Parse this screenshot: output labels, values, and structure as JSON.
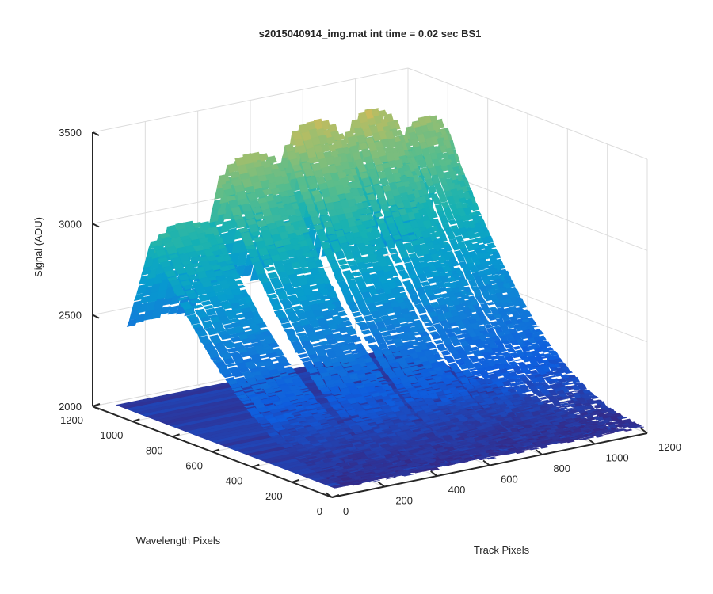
{
  "chart_data": {
    "type": "surface",
    "title": "s2015040914_img.mat int time = 0.02 sec   BS1",
    "xlabel": "Track Pixels",
    "ylabel": "Wavelength Pixels",
    "zlabel": "Signal (ADU)",
    "xlim": [
      0,
      1200
    ],
    "ylim": [
      0,
      1200
    ],
    "zlim": [
      2000,
      3500
    ],
    "x_ticks": [
      "0",
      "200",
      "400",
      "600",
      "800",
      "1000",
      "1200"
    ],
    "y_ticks": [
      "0",
      "200",
      "400",
      "600",
      "800",
      "1000",
      "1200"
    ],
    "z_ticks": [
      "2000",
      "2500",
      "3000",
      "3500"
    ],
    "grid": true,
    "colormap": "parula",
    "colors": {
      "low": "#352a87",
      "mid": "#0fa6d8",
      "high": "#f9fb0e"
    },
    "series": [
      {
        "track_start": 70,
        "track_end": 320,
        "peak_signal": 3030,
        "peak_wavelength": 1000
      },
      {
        "track_start": 330,
        "track_end": 570,
        "peak_signal": 3330,
        "peak_wavelength": 1000
      },
      {
        "track_start": 580,
        "track_end": 800,
        "peak_signal": 3440,
        "peak_wavelength": 1000
      },
      {
        "track_start": 810,
        "track_end": 1010,
        "peak_signal": 3440,
        "peak_wavelength": 1000
      },
      {
        "track_start": 1020,
        "track_end": 1200,
        "peak_signal": 3340,
        "peak_wavelength": 1000
      }
    ],
    "baseline_signal": 2030
  }
}
